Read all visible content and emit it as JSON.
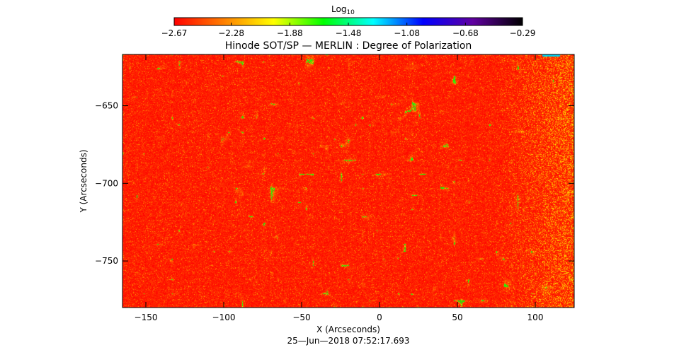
{
  "chart_data": {
    "type": "heatmap",
    "title": "Hinode SOT/SP — MERLIN : Degree of Polarization",
    "xlabel": "X (Arcseconds)",
    "ylabel": "Y (Arcseconds)",
    "timestamp": "25—Jun—2018 07:52:17.693",
    "xlim": [
      -165,
      125
    ],
    "ylim": [
      -780,
      -617
    ],
    "x_ticks": [
      -150,
      -100,
      -50,
      0,
      50,
      100
    ],
    "y_ticks": [
      -650,
      -700,
      -750
    ],
    "x_tick_labels": [
      "−150",
      "−100",
      "−50",
      "0",
      "50",
      "100"
    ],
    "y_tick_labels": [
      "−650",
      "−700",
      "−750"
    ],
    "colorbar": {
      "label_base": "Log",
      "label_sub": "10",
      "range": [
        -2.67,
        -0.29
      ],
      "ticks": [
        -2.67,
        -2.28,
        -1.88,
        -1.48,
        -1.08,
        -0.68,
        -0.29
      ],
      "tick_labels": [
        "−2.67",
        "−2.28",
        "−1.88",
        "−1.48",
        "−1.08",
        "−0.68",
        "−0.29"
      ],
      "colormap": [
        "#ff0000",
        "#ff8000",
        "#ffff00",
        "#00ff00",
        "#00ffff",
        "#0000ff",
        "#6000a0",
        "#000000"
      ]
    }
  }
}
